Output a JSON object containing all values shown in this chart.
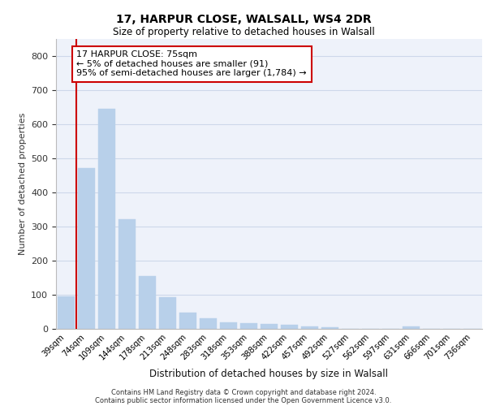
{
  "title_line1": "17, HARPUR CLOSE, WALSALL, WS4 2DR",
  "title_line2": "Size of property relative to detached houses in Walsall",
  "xlabel": "Distribution of detached houses by size in Walsall",
  "ylabel": "Number of detached properties",
  "footer_line1": "Contains HM Land Registry data © Crown copyright and database right 2024.",
  "footer_line2": "Contains public sector information licensed under the Open Government Licence v3.0.",
  "annotation_title": "17 HARPUR CLOSE: 75sqm",
  "annotation_line1": "← 5% of detached houses are smaller (91)",
  "annotation_line2": "95% of semi-detached houses are larger (1,784) →",
  "bar_color": "#b8d0ea",
  "reference_line_color": "#cc0000",
  "categories": [
    "39sqm",
    "74sqm",
    "109sqm",
    "144sqm",
    "178sqm",
    "213sqm",
    "248sqm",
    "283sqm",
    "318sqm",
    "353sqm",
    "388sqm",
    "422sqm",
    "457sqm",
    "492sqm",
    "527sqm",
    "562sqm",
    "597sqm",
    "631sqm",
    "666sqm",
    "701sqm",
    "736sqm"
  ],
  "values": [
    95,
    470,
    645,
    322,
    155,
    93,
    47,
    30,
    20,
    16,
    14,
    11,
    7,
    4,
    0,
    0,
    0,
    8,
    0,
    0,
    0
  ],
  "ylim": [
    0,
    850
  ],
  "yticks": [
    0,
    100,
    200,
    300,
    400,
    500,
    600,
    700,
    800
  ],
  "grid_color": "#cdd8ea",
  "bg_color": "#eef2fa",
  "annotation_box_facecolor": "white",
  "annotation_box_edgecolor": "#cc0000",
  "ref_line_x": 0.5
}
